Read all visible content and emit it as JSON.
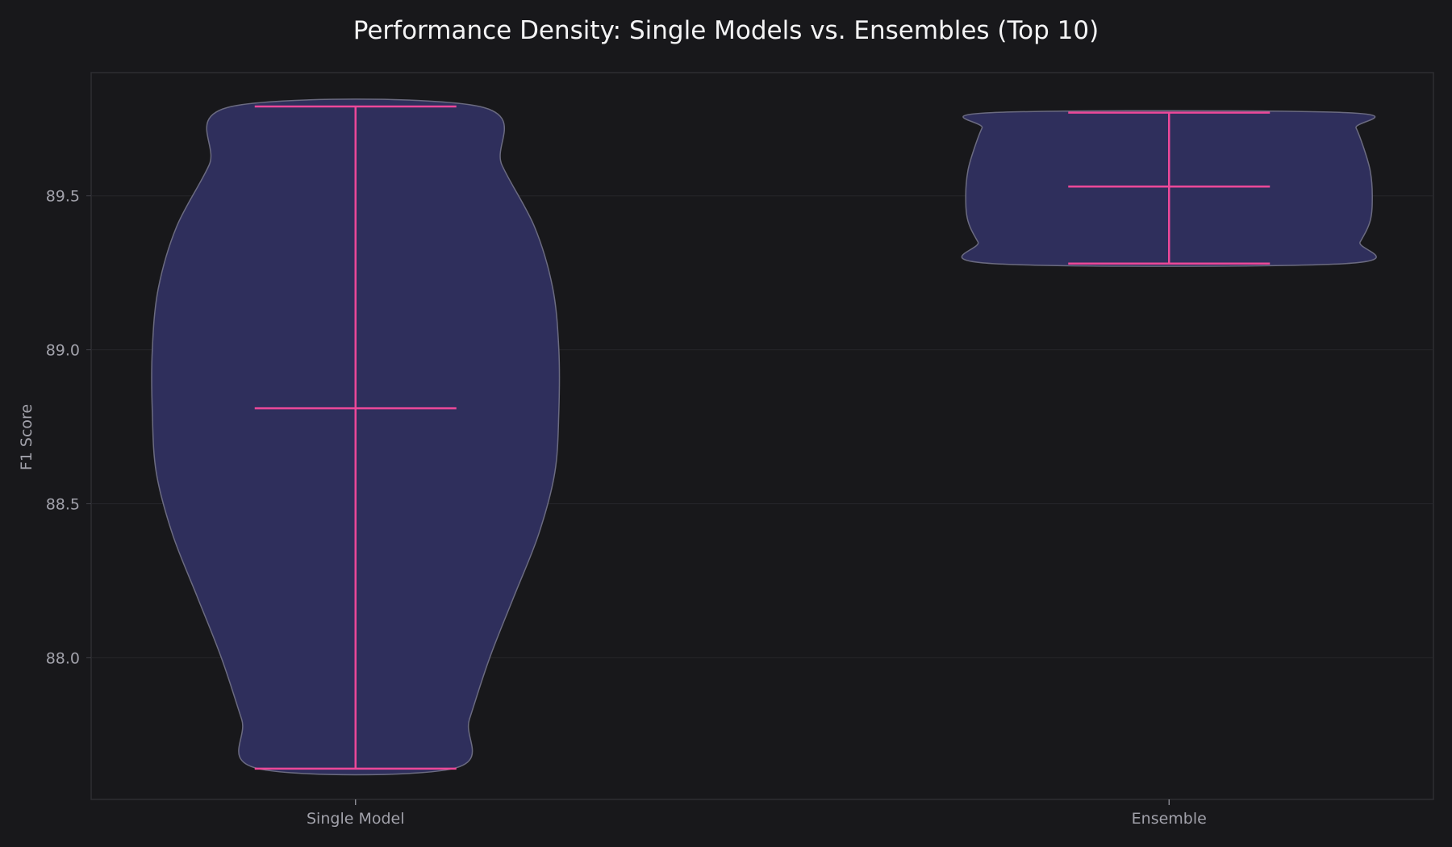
{
  "chart_data": {
    "type": "violin",
    "title": "Performance Density: Single Models vs. Ensembles (Top 10)",
    "xlabel": "",
    "ylabel": "F1 Score",
    "ylim": [
      87.54,
      89.9
    ],
    "yticks": [
      88.0,
      88.5,
      89.0,
      89.5
    ],
    "ytick_labels": [
      "88.0",
      "88.5",
      "89.0",
      "89.5"
    ],
    "grid": true,
    "categories": [
      "Single Model",
      "Ensemble"
    ],
    "violins": [
      {
        "category": "Single Model",
        "min": 87.64,
        "median": 88.81,
        "max": 89.79,
        "density_profile": [
          [
            87.64,
            0.48
          ],
          [
            87.8,
            0.56
          ],
          [
            88.0,
            0.66
          ],
          [
            88.2,
            0.78
          ],
          [
            88.4,
            0.9
          ],
          [
            88.6,
            0.98
          ],
          [
            88.8,
            1.0
          ],
          [
            89.0,
            1.0
          ],
          [
            89.2,
            0.97
          ],
          [
            89.4,
            0.88
          ],
          [
            89.6,
            0.72
          ],
          [
            89.79,
            0.61
          ]
        ]
      },
      {
        "category": "Ensemble",
        "min": 89.28,
        "median": 89.53,
        "max": 89.77,
        "density_profile": [
          [
            89.28,
            0.87
          ],
          [
            89.35,
            0.94
          ],
          [
            89.42,
            0.99
          ],
          [
            89.5,
            1.0
          ],
          [
            89.58,
            0.99
          ],
          [
            89.65,
            0.96
          ],
          [
            89.72,
            0.92
          ],
          [
            89.77,
            0.87
          ]
        ]
      }
    ],
    "colors": {
      "background": "#18181b",
      "plot_border": "#2e2e33",
      "grid": "#26262b",
      "violin_fill": "#2f2f5c",
      "violin_edge": "#6b6b80",
      "stat_lines": "#ec4899",
      "text": "#a1a1aa",
      "title": "#f4f4f5"
    }
  }
}
